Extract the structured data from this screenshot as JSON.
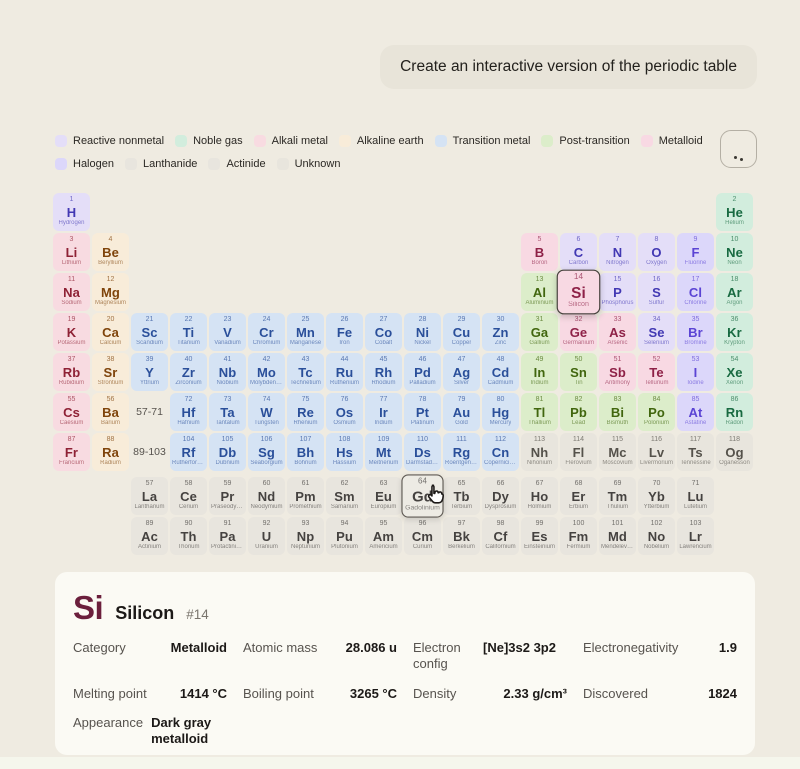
{
  "prompt": {
    "text": "Create an interactive version of the periodic table"
  },
  "categories": {
    "reactive-nonmetal": {
      "label": "Reactive nonmetal",
      "bg": "#e4def8",
      "fg": "#4238b3"
    },
    "noble-gas": {
      "label": "Noble gas",
      "bg": "#d2eddd",
      "fg": "#186a41"
    },
    "alkali-metal": {
      "label": "Alkali metal",
      "bg": "#f8dbe1",
      "fg": "#8e2135"
    },
    "alkaline-earth": {
      "label": "Alkaline earth",
      "bg": "#f8ecd9",
      "fg": "#7f440b"
    },
    "transition-metal": {
      "label": "Transition metal",
      "bg": "#d5e3f4",
      "fg": "#2a4f9a"
    },
    "post-transition": {
      "label": "Post-transition",
      "bg": "#dcedca",
      "fg": "#41660e"
    },
    "metalloid": {
      "label": "Metalloid",
      "bg": "#f8d9e3",
      "fg": "#8e2147"
    },
    "halogen": {
      "label": "Halogen",
      "bg": "#dcd7fa",
      "fg": "#5b44d4"
    },
    "lanthanide": {
      "label": "Lanthanide",
      "bg": "#e8e5de",
      "fg": "#454240"
    },
    "actinide": {
      "label": "Actinide",
      "bg": "#e8e5de",
      "fg": "#454240"
    },
    "unknown": {
      "label": "Unknown",
      "bg": "#e8e5dd",
      "fg": "#55524b"
    }
  },
  "legend_order": [
    "reactive-nonmetal",
    "noble-gas",
    "alkali-metal",
    "alkaline-earth",
    "transition-metal",
    "post-transition",
    "metalloid",
    "halogen",
    "lanthanide",
    "actinide",
    "unknown"
  ],
  "table": {
    "placeholders": [
      {
        "label": "57-71",
        "row": 6,
        "col": 3
      },
      {
        "label": "89-103",
        "row": 7,
        "col": 3
      }
    ]
  },
  "elements": [
    {
      "n": 1,
      "sym": "H",
      "name": "Hydrogen",
      "cat": "reactive-nonmetal",
      "row": 1,
      "col": 1
    },
    {
      "n": 2,
      "sym": "He",
      "name": "Helium",
      "cat": "noble-gas",
      "row": 1,
      "col": 18
    },
    {
      "n": 3,
      "sym": "Li",
      "name": "Lithium",
      "cat": "alkali-metal",
      "row": 2,
      "col": 1
    },
    {
      "n": 4,
      "sym": "Be",
      "name": "Beryllium",
      "cat": "alkaline-earth",
      "row": 2,
      "col": 2
    },
    {
      "n": 5,
      "sym": "B",
      "name": "Boron",
      "cat": "metalloid",
      "row": 2,
      "col": 13
    },
    {
      "n": 6,
      "sym": "C",
      "name": "Carbon",
      "cat": "reactive-nonmetal",
      "row": 2,
      "col": 14
    },
    {
      "n": 7,
      "sym": "N",
      "name": "Nitrogen",
      "cat": "reactive-nonmetal",
      "row": 2,
      "col": 15
    },
    {
      "n": 8,
      "sym": "O",
      "name": "Oxygen",
      "cat": "reactive-nonmetal",
      "row": 2,
      "col": 16
    },
    {
      "n": 9,
      "sym": "F",
      "name": "Fluorine",
      "cat": "halogen",
      "row": 2,
      "col": 17
    },
    {
      "n": 10,
      "sym": "Ne",
      "name": "Neon",
      "cat": "noble-gas",
      "row": 2,
      "col": 18
    },
    {
      "n": 11,
      "sym": "Na",
      "name": "Sodium",
      "cat": "alkali-metal",
      "row": 3,
      "col": 1
    },
    {
      "n": 12,
      "sym": "Mg",
      "name": "Magnesium",
      "cat": "alkaline-earth",
      "row": 3,
      "col": 2
    },
    {
      "n": 13,
      "sym": "Al",
      "name": "Aluminium",
      "cat": "post-transition",
      "row": 3,
      "col": 13
    },
    {
      "n": 14,
      "sym": "Si",
      "name": "Silicon",
      "cat": "metalloid",
      "row": 3,
      "col": 14,
      "state": "selected"
    },
    {
      "n": 15,
      "sym": "P",
      "name": "Phosphorus",
      "cat": "reactive-nonmetal",
      "row": 3,
      "col": 15
    },
    {
      "n": 16,
      "sym": "S",
      "name": "Sulfur",
      "cat": "reactive-nonmetal",
      "row": 3,
      "col": 16
    },
    {
      "n": 17,
      "sym": "Cl",
      "name": "Chlorine",
      "cat": "halogen",
      "row": 3,
      "col": 17
    },
    {
      "n": 18,
      "sym": "Ar",
      "name": "Argon",
      "cat": "noble-gas",
      "row": 3,
      "col": 18
    },
    {
      "n": 19,
      "sym": "K",
      "name": "Potassium",
      "cat": "alkali-metal",
      "row": 4,
      "col": 1
    },
    {
      "n": 20,
      "sym": "Ca",
      "name": "Calcium",
      "cat": "alkaline-earth",
      "row": 4,
      "col": 2
    },
    {
      "n": 21,
      "sym": "Sc",
      "name": "Scandium",
      "cat": "transition-metal",
      "row": 4,
      "col": 3
    },
    {
      "n": 22,
      "sym": "Ti",
      "name": "Titanium",
      "cat": "transition-metal",
      "row": 4,
      "col": 4
    },
    {
      "n": 23,
      "sym": "V",
      "name": "Vanadium",
      "cat": "transition-metal",
      "row": 4,
      "col": 5
    },
    {
      "n": 24,
      "sym": "Cr",
      "name": "Chromium",
      "cat": "transition-metal",
      "row": 4,
      "col": 6
    },
    {
      "n": 25,
      "sym": "Mn",
      "name": "Manganese",
      "cat": "transition-metal",
      "row": 4,
      "col": 7
    },
    {
      "n": 26,
      "sym": "Fe",
      "name": "Iron",
      "cat": "transition-metal",
      "row": 4,
      "col": 8
    },
    {
      "n": 27,
      "sym": "Co",
      "name": "Cobalt",
      "cat": "transition-metal",
      "row": 4,
      "col": 9
    },
    {
      "n": 28,
      "sym": "Ni",
      "name": "Nickel",
      "cat": "transition-metal",
      "row": 4,
      "col": 10
    },
    {
      "n": 29,
      "sym": "Cu",
      "name": "Copper",
      "cat": "transition-metal",
      "row": 4,
      "col": 11
    },
    {
      "n": 30,
      "sym": "Zn",
      "name": "Zinc",
      "cat": "transition-metal",
      "row": 4,
      "col": 12
    },
    {
      "n": 31,
      "sym": "Ga",
      "name": "Gallium",
      "cat": "post-transition",
      "row": 4,
      "col": 13
    },
    {
      "n": 32,
      "sym": "Ge",
      "name": "Germanium",
      "cat": "metalloid",
      "row": 4,
      "col": 14
    },
    {
      "n": 33,
      "sym": "As",
      "name": "Arsenic",
      "cat": "metalloid",
      "row": 4,
      "col": 15
    },
    {
      "n": 34,
      "sym": "Se",
      "name": "Selenium",
      "cat": "reactive-nonmetal",
      "row": 4,
      "col": 16
    },
    {
      "n": 35,
      "sym": "Br",
      "name": "Bromine",
      "cat": "halogen",
      "row": 4,
      "col": 17
    },
    {
      "n": 36,
      "sym": "Kr",
      "name": "Krypton",
      "cat": "noble-gas",
      "row": 4,
      "col": 18
    },
    {
      "n": 37,
      "sym": "Rb",
      "name": "Rubidium",
      "cat": "alkali-metal",
      "row": 5,
      "col": 1
    },
    {
      "n": 38,
      "sym": "Sr",
      "name": "Strontium",
      "cat": "alkaline-earth",
      "row": 5,
      "col": 2
    },
    {
      "n": 39,
      "sym": "Y",
      "name": "Yttrium",
      "cat": "transition-metal",
      "row": 5,
      "col": 3
    },
    {
      "n": 40,
      "sym": "Zr",
      "name": "Zirconium",
      "cat": "transition-metal",
      "row": 5,
      "col": 4
    },
    {
      "n": 41,
      "sym": "Nb",
      "name": "Niobium",
      "cat": "transition-metal",
      "row": 5,
      "col": 5
    },
    {
      "n": 42,
      "sym": "Mo",
      "name": "Molybdenum",
      "cat": "transition-metal",
      "row": 5,
      "col": 6
    },
    {
      "n": 43,
      "sym": "Tc",
      "name": "Technetium",
      "cat": "transition-metal",
      "row": 5,
      "col": 7
    },
    {
      "n": 44,
      "sym": "Ru",
      "name": "Ruthenium",
      "cat": "transition-metal",
      "row": 5,
      "col": 8
    },
    {
      "n": 45,
      "sym": "Rh",
      "name": "Rhodium",
      "cat": "transition-metal",
      "row": 5,
      "col": 9
    },
    {
      "n": 46,
      "sym": "Pd",
      "name": "Palladium",
      "cat": "transition-metal",
      "row": 5,
      "col": 10
    },
    {
      "n": 47,
      "sym": "Ag",
      "name": "Silver",
      "cat": "transition-metal",
      "row": 5,
      "col": 11
    },
    {
      "n": 48,
      "sym": "Cd",
      "name": "Cadmium",
      "cat": "transition-metal",
      "row": 5,
      "col": 12
    },
    {
      "n": 49,
      "sym": "In",
      "name": "Indium",
      "cat": "post-transition",
      "row": 5,
      "col": 13
    },
    {
      "n": 50,
      "sym": "Sn",
      "name": "Tin",
      "cat": "post-transition",
      "row": 5,
      "col": 14
    },
    {
      "n": 51,
      "sym": "Sb",
      "name": "Antimony",
      "cat": "metalloid",
      "row": 5,
      "col": 15
    },
    {
      "n": 52,
      "sym": "Te",
      "name": "Tellurium",
      "cat": "metalloid",
      "row": 5,
      "col": 16
    },
    {
      "n": 53,
      "sym": "I",
      "name": "Iodine",
      "cat": "halogen",
      "row": 5,
      "col": 17
    },
    {
      "n": 54,
      "sym": "Xe",
      "name": "Xenon",
      "cat": "noble-gas",
      "row": 5,
      "col": 18
    },
    {
      "n": 55,
      "sym": "Cs",
      "name": "Caesium",
      "cat": "alkali-metal",
      "row": 6,
      "col": 1
    },
    {
      "n": 56,
      "sym": "Ba",
      "name": "Barium",
      "cat": "alkaline-earth",
      "row": 6,
      "col": 2
    },
    {
      "n": 72,
      "sym": "Hf",
      "name": "Hafnium",
      "cat": "transition-metal",
      "row": 6,
      "col": 4
    },
    {
      "n": 73,
      "sym": "Ta",
      "name": "Tantalum",
      "cat": "transition-metal",
      "row": 6,
      "col": 5
    },
    {
      "n": 74,
      "sym": "W",
      "name": "Tungsten",
      "cat": "transition-metal",
      "row": 6,
      "col": 6
    },
    {
      "n": 75,
      "sym": "Re",
      "name": "Rhenium",
      "cat": "transition-metal",
      "row": 6,
      "col": 7
    },
    {
      "n": 76,
      "sym": "Os",
      "name": "Osmium",
      "cat": "transition-metal",
      "row": 6,
      "col": 8
    },
    {
      "n": 77,
      "sym": "Ir",
      "name": "Iridium",
      "cat": "transition-metal",
      "row": 6,
      "col": 9
    },
    {
      "n": 78,
      "sym": "Pt",
      "name": "Platinum",
      "cat": "transition-metal",
      "row": 6,
      "col": 10
    },
    {
      "n": 79,
      "sym": "Au",
      "name": "Gold",
      "cat": "transition-metal",
      "row": 6,
      "col": 11
    },
    {
      "n": 80,
      "sym": "Hg",
      "name": "Mercury",
      "cat": "transition-metal",
      "row": 6,
      "col": 12
    },
    {
      "n": 81,
      "sym": "Tl",
      "name": "Thallium",
      "cat": "post-transition",
      "row": 6,
      "col": 13
    },
    {
      "n": 82,
      "sym": "Pb",
      "name": "Lead",
      "cat": "post-transition",
      "row": 6,
      "col": 14
    },
    {
      "n": 83,
      "sym": "Bi",
      "name": "Bismuth",
      "cat": "post-transition",
      "row": 6,
      "col": 15
    },
    {
      "n": 84,
      "sym": "Po",
      "name": "Polonium",
      "cat": "post-transition",
      "row": 6,
      "col": 16
    },
    {
      "n": 85,
      "sym": "At",
      "name": "Astatine",
      "cat": "halogen",
      "row": 6,
      "col": 17
    },
    {
      "n": 86,
      "sym": "Rn",
      "name": "Radon",
      "cat": "noble-gas",
      "row": 6,
      "col": 18
    },
    {
      "n": 87,
      "sym": "Fr",
      "name": "Francium",
      "cat": "alkali-metal",
      "row": 7,
      "col": 1
    },
    {
      "n": 88,
      "sym": "Ra",
      "name": "Radium",
      "cat": "alkaline-earth",
      "row": 7,
      "col": 2
    },
    {
      "n": 104,
      "sym": "Rf",
      "name": "Rutherfordium",
      "cat": "transition-metal",
      "row": 7,
      "col": 4
    },
    {
      "n": 105,
      "sym": "Db",
      "name": "Dubnium",
      "cat": "transition-metal",
      "row": 7,
      "col": 5
    },
    {
      "n": 106,
      "sym": "Sg",
      "name": "Seaborgium",
      "cat": "transition-metal",
      "row": 7,
      "col": 6
    },
    {
      "n": 107,
      "sym": "Bh",
      "name": "Bohrium",
      "cat": "transition-metal",
      "row": 7,
      "col": 7
    },
    {
      "n": 108,
      "sym": "Hs",
      "name": "Hassium",
      "cat": "transition-metal",
      "row": 7,
      "col": 8
    },
    {
      "n": 109,
      "sym": "Mt",
      "name": "Meitnerium",
      "cat": "transition-metal",
      "row": 7,
      "col": 9
    },
    {
      "n": 110,
      "sym": "Ds",
      "name": "Darmstadtium",
      "cat": "transition-metal",
      "row": 7,
      "col": 10
    },
    {
      "n": 111,
      "sym": "Rg",
      "name": "Roentgenium",
      "cat": "transition-metal",
      "row": 7,
      "col": 11
    },
    {
      "n": 112,
      "sym": "Cn",
      "name": "Copernicium",
      "cat": "transition-metal",
      "row": 7,
      "col": 12
    },
    {
      "n": 113,
      "sym": "Nh",
      "name": "Nihonium",
      "cat": "unknown",
      "row": 7,
      "col": 13
    },
    {
      "n": 114,
      "sym": "Fl",
      "name": "Flerovium",
      "cat": "unknown",
      "row": 7,
      "col": 14
    },
    {
      "n": 115,
      "sym": "Mc",
      "name": "Moscovium",
      "cat": "unknown",
      "row": 7,
      "col": 15
    },
    {
      "n": 116,
      "sym": "Lv",
      "name": "Livermorium",
      "cat": "unknown",
      "row": 7,
      "col": 16
    },
    {
      "n": 117,
      "sym": "Ts",
      "name": "Tennessine",
      "cat": "unknown",
      "row": 7,
      "col": 17
    },
    {
      "n": 118,
      "sym": "Og",
      "name": "Oganesson",
      "cat": "unknown",
      "row": 7,
      "col": 18
    },
    {
      "n": 57,
      "sym": "La",
      "name": "Lanthanum",
      "cat": "lanthanide",
      "row": 8,
      "col": 3
    },
    {
      "n": 58,
      "sym": "Ce",
      "name": "Cerium",
      "cat": "lanthanide",
      "row": 8,
      "col": 4
    },
    {
      "n": 59,
      "sym": "Pr",
      "name": "Praseodymium",
      "cat": "lanthanide",
      "row": 8,
      "col": 5
    },
    {
      "n": 60,
      "sym": "Nd",
      "name": "Neodymium",
      "cat": "lanthanide",
      "row": 8,
      "col": 6
    },
    {
      "n": 61,
      "sym": "Pm",
      "name": "Promethium",
      "cat": "lanthanide",
      "row": 8,
      "col": 7
    },
    {
      "n": 62,
      "sym": "Sm",
      "name": "Samarium",
      "cat": "lanthanide",
      "row": 8,
      "col": 8
    },
    {
      "n": 63,
      "sym": "Eu",
      "name": "Europium",
      "cat": "lanthanide",
      "row": 8,
      "col": 9
    },
    {
      "n": 64,
      "sym": "Gd",
      "name": "Gadolinium",
      "cat": "lanthanide",
      "row": 8,
      "col": 10,
      "state": "hovered"
    },
    {
      "n": 65,
      "sym": "Tb",
      "name": "Terbium",
      "cat": "lanthanide",
      "row": 8,
      "col": 11
    },
    {
      "n": 66,
      "sym": "Dy",
      "name": "Dysprosium",
      "cat": "lanthanide",
      "row": 8,
      "col": 12
    },
    {
      "n": 67,
      "sym": "Ho",
      "name": "Holmium",
      "cat": "lanthanide",
      "row": 8,
      "col": 13
    },
    {
      "n": 68,
      "sym": "Er",
      "name": "Erbium",
      "cat": "lanthanide",
      "row": 8,
      "col": 14
    },
    {
      "n": 69,
      "sym": "Tm",
      "name": "Thulium",
      "cat": "lanthanide",
      "row": 8,
      "col": 15
    },
    {
      "n": 70,
      "sym": "Yb",
      "name": "Ytterbium",
      "cat": "lanthanide",
      "row": 8,
      "col": 16
    },
    {
      "n": 71,
      "sym": "Lu",
      "name": "Lutetium",
      "cat": "lanthanide",
      "row": 8,
      "col": 17
    },
    {
      "n": 89,
      "sym": "Ac",
      "name": "Actinium",
      "cat": "actinide",
      "row": 9,
      "col": 3
    },
    {
      "n": 90,
      "sym": "Th",
      "name": "Thorium",
      "cat": "actinide",
      "row": 9,
      "col": 4
    },
    {
      "n": 91,
      "sym": "Pa",
      "name": "Protactinium",
      "cat": "actinide",
      "row": 9,
      "col": 5
    },
    {
      "n": 92,
      "sym": "U",
      "name": "Uranium",
      "cat": "actinide",
      "row": 9,
      "col": 6
    },
    {
      "n": 93,
      "sym": "Np",
      "name": "Neptunium",
      "cat": "actinide",
      "row": 9,
      "col": 7
    },
    {
      "n": 94,
      "sym": "Pu",
      "name": "Plutonium",
      "cat": "actinide",
      "row": 9,
      "col": 8
    },
    {
      "n": 95,
      "sym": "Am",
      "name": "Americium",
      "cat": "actinide",
      "row": 9,
      "col": 9
    },
    {
      "n": 96,
      "sym": "Cm",
      "name": "Curium",
      "cat": "actinide",
      "row": 9,
      "col": 10
    },
    {
      "n": 97,
      "sym": "Bk",
      "name": "Berkelium",
      "cat": "actinide",
      "row": 9,
      "col": 11
    },
    {
      "n": 98,
      "sym": "Cf",
      "name": "Californium",
      "cat": "actinide",
      "row": 9,
      "col": 12
    },
    {
      "n": 99,
      "sym": "Es",
      "name": "Einsteinium",
      "cat": "actinide",
      "row": 9,
      "col": 13
    },
    {
      "n": 100,
      "sym": "Fm",
      "name": "Fermium",
      "cat": "actinide",
      "row": 9,
      "col": 14
    },
    {
      "n": 101,
      "sym": "Md",
      "name": "Mendelevium",
      "cat": "actinide",
      "row": 9,
      "col": 15
    },
    {
      "n": 102,
      "sym": "No",
      "name": "Nobelium",
      "cat": "actinide",
      "row": 9,
      "col": 16
    },
    {
      "n": 103,
      "sym": "Lr",
      "name": "Lawrencium",
      "cat": "actinide",
      "row": 9,
      "col": 17
    }
  ],
  "detail": {
    "symbol": "Si",
    "name": "Silicon",
    "number": "#14",
    "symbol_color": "#6b1f3c",
    "fields": [
      {
        "label": "Category",
        "value": "Metalloid"
      },
      {
        "label": "Atomic mass",
        "value": "28.086 u"
      },
      {
        "label": "Electron config",
        "value": "[Ne]3s2 3p2"
      },
      {
        "label": "Electronegativity",
        "value": "1.9"
      },
      {
        "label": "Melting point",
        "value": "1414 °C"
      },
      {
        "label": "Boiling point",
        "value": "3265 °C"
      },
      {
        "label": "Density",
        "value": "2.33 g/cm³"
      },
      {
        "label": "Discovered",
        "value": "1824"
      },
      {
        "label": "Appearance",
        "value": "Dark gray metalloid"
      }
    ]
  }
}
